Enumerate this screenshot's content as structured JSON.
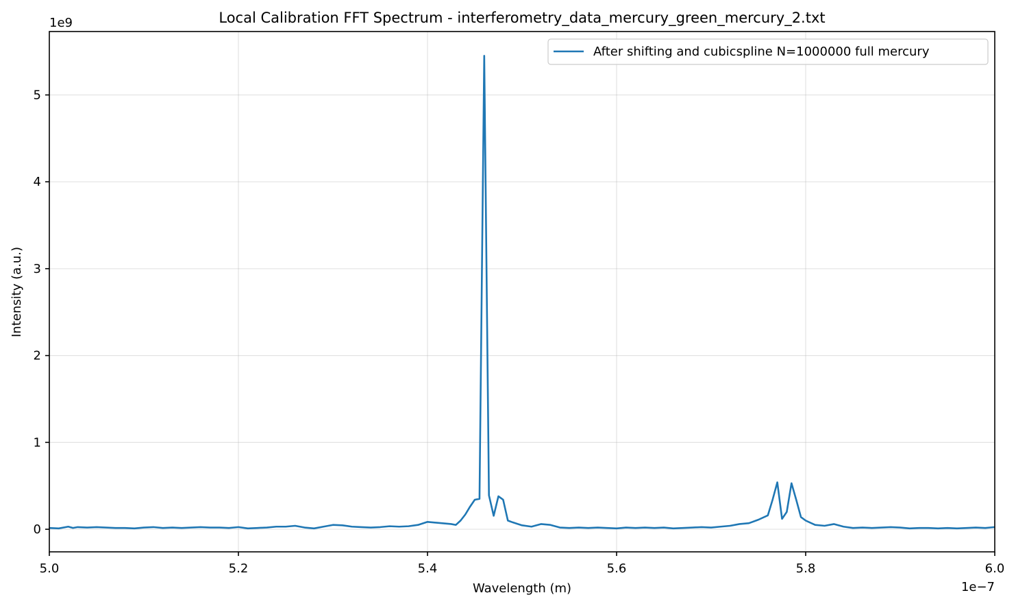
{
  "chart_data": {
    "type": "line",
    "title": "Local Calibration FFT Spectrum - interferometry_data_mercury_green_mercury_2.txt",
    "xlabel": "Wavelength (m)",
    "ylabel": "Intensity (a.u.)",
    "x_offset_text": "1e−7",
    "y_offset_text": "1e9",
    "xlim": [
      5e-07,
      6e-07
    ],
    "ylim": [
      -260000000.0,
      5730000000.0
    ],
    "x_scale": 1e-07,
    "y_scale": 1000000000.0,
    "x_ticks": [
      5e-07,
      5.2e-07,
      5.4e-07,
      5.6e-07,
      5.8e-07,
      6e-07
    ],
    "x_tick_labels": [
      "5.0",
      "5.2",
      "5.4",
      "5.6",
      "5.8",
      "6.0"
    ],
    "y_ticks": [
      0,
      1000000000.0,
      2000000000.0,
      3000000000.0,
      4000000000.0,
      5000000000.0
    ],
    "y_tick_labels": [
      "0",
      "1",
      "2",
      "3",
      "4",
      "5"
    ],
    "grid": true,
    "legend_position": "upper right",
    "series": [
      {
        "name": "After shifting and cubicspline N=1000000 full mercury",
        "color": "#1f77b4",
        "x": [
          5e-07,
          5.01e-07,
          5.02e-07,
          5.025e-07,
          5.03e-07,
          5.04e-07,
          5.05e-07,
          5.06e-07,
          5.07e-07,
          5.08e-07,
          5.09e-07,
          5.1e-07,
          5.11e-07,
          5.12e-07,
          5.13e-07,
          5.14e-07,
          5.15e-07,
          5.16e-07,
          5.17e-07,
          5.18e-07,
          5.19e-07,
          5.2e-07,
          5.21e-07,
          5.22e-07,
          5.23e-07,
          5.24e-07,
          5.25e-07,
          5.26e-07,
          5.27e-07,
          5.28e-07,
          5.29e-07,
          5.3e-07,
          5.31e-07,
          5.32e-07,
          5.33e-07,
          5.34e-07,
          5.35e-07,
          5.36e-07,
          5.37e-07,
          5.38e-07,
          5.39e-07,
          5.4e-07,
          5.41e-07,
          5.42e-07,
          5.425e-07,
          5.43e-07,
          5.435e-07,
          5.44e-07,
          5.445e-07,
          5.45e-07,
          5.455e-07,
          5.46e-07,
          5.465e-07,
          5.47e-07,
          5.475e-07,
          5.48e-07,
          5.485e-07,
          5.49e-07,
          5.5e-07,
          5.51e-07,
          5.52e-07,
          5.53e-07,
          5.54e-07,
          5.55e-07,
          5.56e-07,
          5.57e-07,
          5.58e-07,
          5.59e-07,
          5.6e-07,
          5.61e-07,
          5.62e-07,
          5.63e-07,
          5.64e-07,
          5.65e-07,
          5.66e-07,
          5.67e-07,
          5.68e-07,
          5.69e-07,
          5.7e-07,
          5.71e-07,
          5.72e-07,
          5.73e-07,
          5.74e-07,
          5.75e-07,
          5.76e-07,
          5.765e-07,
          5.77e-07,
          5.775e-07,
          5.78e-07,
          5.785e-07,
          5.79e-07,
          5.795e-07,
          5.8e-07,
          5.81e-07,
          5.82e-07,
          5.83e-07,
          5.84e-07,
          5.85e-07,
          5.86e-07,
          5.87e-07,
          5.88e-07,
          5.89e-07,
          5.9e-07,
          5.91e-07,
          5.92e-07,
          5.93e-07,
          5.94e-07,
          5.95e-07,
          5.96e-07,
          5.97e-07,
          5.98e-07,
          5.99e-07,
          6e-07
        ],
        "y": [
          15000000.0,
          10000000.0,
          30000000.0,
          15000000.0,
          25000000.0,
          20000000.0,
          25000000.0,
          20000000.0,
          15000000.0,
          15000000.0,
          10000000.0,
          20000000.0,
          25000000.0,
          15000000.0,
          20000000.0,
          15000000.0,
          20000000.0,
          25000000.0,
          20000000.0,
          20000000.0,
          15000000.0,
          25000000.0,
          10000000.0,
          15000000.0,
          20000000.0,
          30000000.0,
          30000000.0,
          40000000.0,
          20000000.0,
          10000000.0,
          30000000.0,
          50000000.0,
          45000000.0,
          30000000.0,
          25000000.0,
          20000000.0,
          25000000.0,
          35000000.0,
          30000000.0,
          35000000.0,
          50000000.0,
          85000000.0,
          75000000.0,
          65000000.0,
          60000000.0,
          50000000.0,
          100000000.0,
          170000000.0,
          260000000.0,
          340000000.0,
          350000000.0,
          5450000000.0,
          390000000.0,
          155000000.0,
          380000000.0,
          340000000.0,
          100000000.0,
          80000000.0,
          45000000.0,
          30000000.0,
          60000000.0,
          50000000.0,
          20000000.0,
          15000000.0,
          20000000.0,
          15000000.0,
          20000000.0,
          15000000.0,
          10000000.0,
          20000000.0,
          15000000.0,
          20000000.0,
          15000000.0,
          20000000.0,
          10000000.0,
          15000000.0,
          20000000.0,
          25000000.0,
          20000000.0,
          30000000.0,
          40000000.0,
          60000000.0,
          70000000.0,
          110000000.0,
          160000000.0,
          340000000.0,
          540000000.0,
          120000000.0,
          200000000.0,
          530000000.0,
          340000000.0,
          140000000.0,
          100000000.0,
          50000000.0,
          40000000.0,
          60000000.0,
          30000000.0,
          15000000.0,
          20000000.0,
          15000000.0,
          20000000.0,
          25000000.0,
          20000000.0,
          10000000.0,
          15000000.0,
          15000000.0,
          10000000.0,
          15000000.0,
          10000000.0,
          15000000.0,
          20000000.0,
          15000000.0,
          25000000.0
        ]
      }
    ]
  }
}
